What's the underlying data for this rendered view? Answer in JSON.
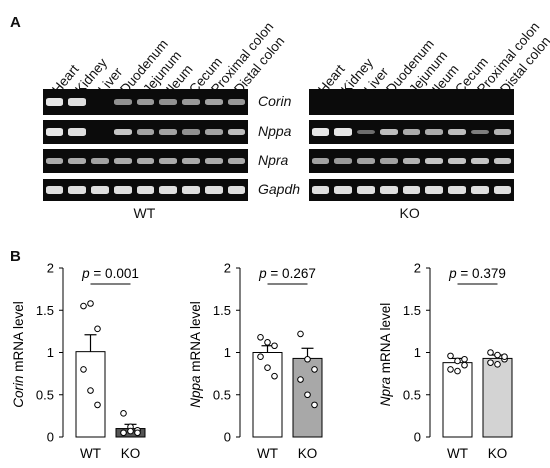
{
  "panel_a": {
    "letter": "A",
    "lanes": [
      "Heart",
      "Kidney",
      "Liver",
      "Duodenum",
      "Jejunum",
      "Ileum",
      "Cecum",
      "Proximal colon",
      "Distal colon"
    ],
    "genes": [
      "Corin",
      "Nppa",
      "Npra",
      "Gapdh"
    ],
    "groups": [
      "WT",
      "KO"
    ],
    "band_intensity": {
      "WT": {
        "Corin": [
          1.0,
          0.9,
          0.0,
          0.45,
          0.5,
          0.45,
          0.5,
          0.55,
          0.5
        ],
        "Nppa": [
          0.95,
          0.9,
          0.0,
          0.75,
          0.55,
          0.55,
          0.45,
          0.55,
          0.7
        ],
        "Npra": [
          0.6,
          0.6,
          0.55,
          0.6,
          0.6,
          0.6,
          0.6,
          0.6,
          0.6
        ],
        "Gapdh": [
          0.9,
          0.9,
          0.9,
          0.9,
          0.9,
          0.9,
          0.9,
          0.9,
          0.9
        ]
      },
      "KO": {
        "Corin": [
          0,
          0,
          0,
          0,
          0,
          0,
          0,
          0,
          0
        ],
        "Nppa": [
          1.0,
          0.95,
          0.25,
          0.7,
          0.6,
          0.6,
          0.7,
          0.35,
          0.65
        ],
        "Npra": [
          0.55,
          0.5,
          0.55,
          0.55,
          0.65,
          0.75,
          0.75,
          0.75,
          0.75
        ],
        "Gapdh": [
          0.9,
          0.9,
          0.9,
          0.9,
          0.9,
          0.9,
          0.9,
          0.9,
          0.9
        ]
      }
    }
  },
  "panel_b": {
    "letter": "B"
  },
  "chart_data": [
    {
      "type": "bar",
      "ylabel_gene": "Corin",
      "ylabel_rest": " mRNA level",
      "categories": [
        "WT",
        "KO"
      ],
      "values": [
        1.01,
        0.1
      ],
      "errors": [
        0.2,
        0.05
      ],
      "points": [
        [
          1.55,
          1.58,
          1.28,
          0.8,
          0.55,
          0.38
        ],
        [
          0.28,
          0.12,
          0.08,
          0.05,
          0.07,
          0.05
        ]
      ],
      "bar_colors": [
        "#ffffff",
        "#555555"
      ],
      "pvalue": "p = 0.001",
      "ylim": [
        0,
        2
      ],
      "yticks": [
        "0",
        "0.5",
        "1",
        "1.5",
        "2"
      ]
    },
    {
      "type": "bar",
      "ylabel_gene": "Nppa",
      "ylabel_rest": " mRNA level",
      "categories": [
        "WT",
        "KO"
      ],
      "values": [
        1.0,
        0.93
      ],
      "errors": [
        0.08,
        0.12
      ],
      "points": [
        [
          1.18,
          1.12,
          1.08,
          0.95,
          0.82,
          0.72
        ],
        [
          1.22,
          0.92,
          0.8,
          0.68,
          0.5,
          0.38
        ]
      ],
      "bar_colors": [
        "#ffffff",
        "#a8a8a8"
      ],
      "pvalue": "p = 0.267",
      "ylim": [
        0,
        2
      ],
      "yticks": [
        "0",
        "0.5",
        "1",
        "1.5",
        "2"
      ]
    },
    {
      "type": "bar",
      "ylabel_gene": "Npra",
      "ylabel_rest": " mRNA level",
      "categories": [
        "WT",
        "KO"
      ],
      "values": [
        0.88,
        0.93
      ],
      "errors": [
        0.05,
        0.04
      ],
      "points": [
        [
          0.96,
          0.9,
          0.85,
          0.8,
          0.78,
          0.92
        ],
        [
          1.0,
          0.97,
          0.92,
          0.88,
          0.86,
          0.95
        ]
      ],
      "bar_colors": [
        "#ffffff",
        "#d3d3d3"
      ],
      "pvalue": "p = 0.379",
      "ylim": [
        0,
        2
      ],
      "yticks": [
        "0",
        "0.5",
        "1",
        "1.5",
        "2"
      ]
    }
  ]
}
